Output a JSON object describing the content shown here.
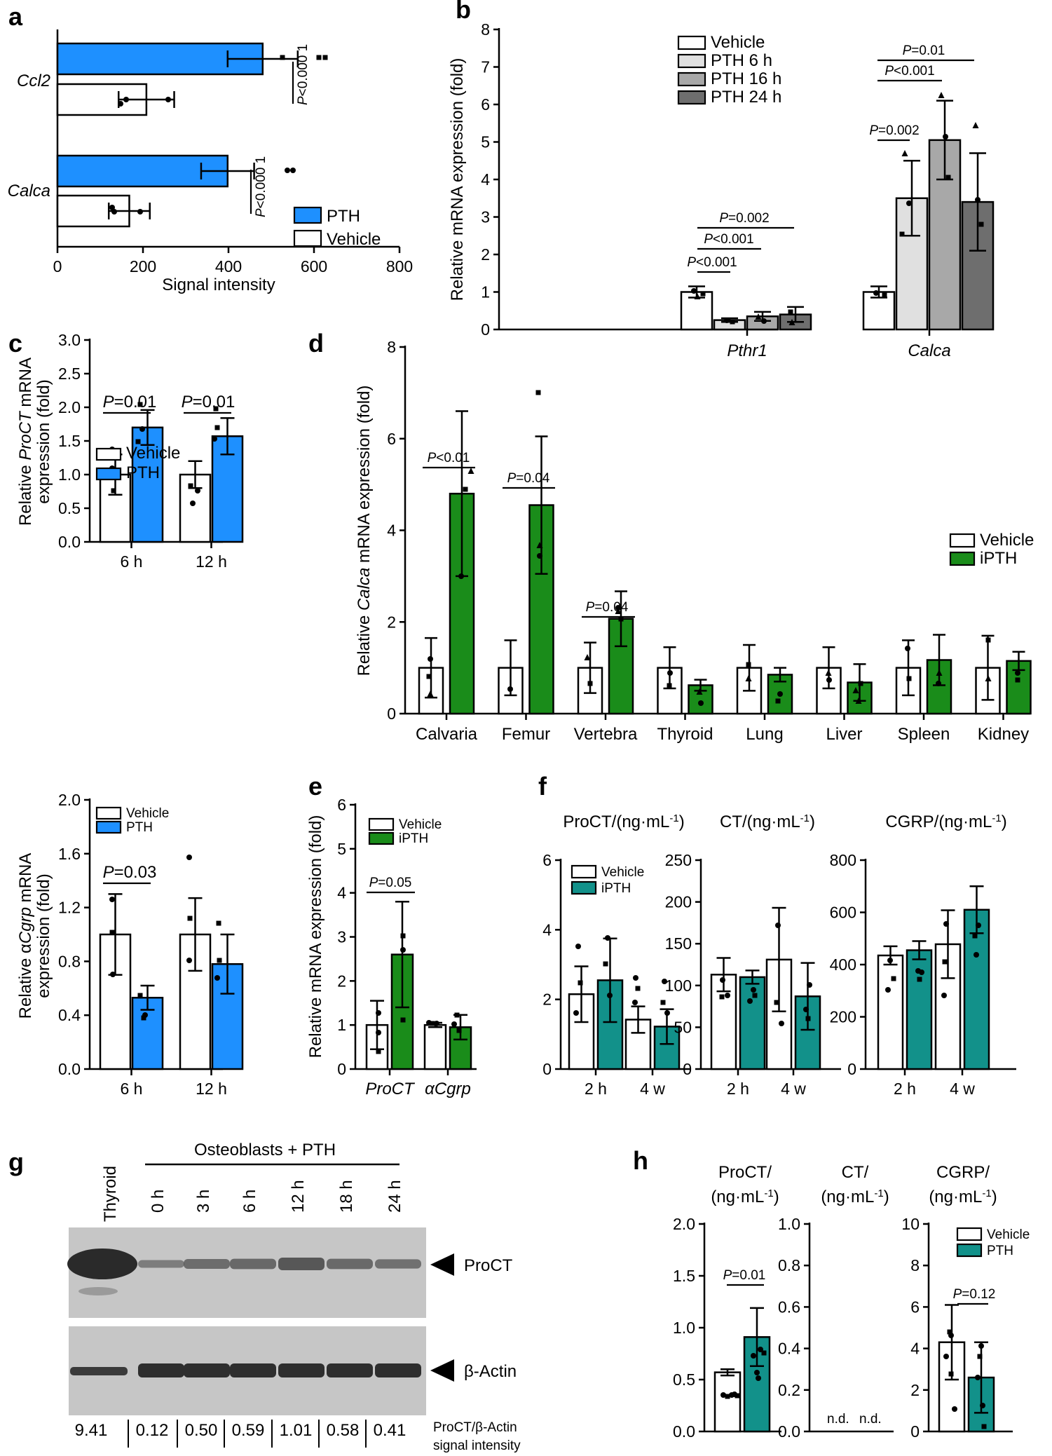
{
  "panel_letters": {
    "a": "a",
    "b": "b",
    "c": "c",
    "d": "d",
    "e": "e",
    "f": "f",
    "g": "g",
    "h": "h"
  },
  "colors": {
    "pth_blue": "#1e90ff",
    "ipth_green": "#1a8c1a",
    "teal": "#12918a",
    "vehicle": "#ffffff",
    "grey1": "#e0e0e0",
    "grey2": "#a8a8a8",
    "grey3": "#6e6e6e"
  },
  "chart_data": [
    {
      "panel": "a",
      "type": "bar",
      "orientation": "horizontal",
      "categories": [
        "Ccl2",
        "Calca"
      ],
      "series": [
        {
          "name": "PTH",
          "values": [
            480,
            398
          ],
          "errors": [
            82,
            62
          ],
          "color": "#1e90ff"
        },
        {
          "name": "Vehicle",
          "values": [
            208,
            168
          ],
          "errors": [
            65,
            48
          ],
          "color": "#ffffff"
        }
      ],
      "xlabel": "Signal intensity",
      "xlim": [
        0,
        800
      ],
      "xticks": [
        "0",
        "200",
        "400",
        "600",
        "800"
      ],
      "annotations": [
        "P<0.000 1",
        "P<0.000 1"
      ]
    },
    {
      "panel": "b",
      "type": "bar",
      "categories": [
        "Pthr1",
        "Calca"
      ],
      "series": [
        {
          "name": "Vehicle",
          "values": [
            1.0,
            1.0
          ],
          "errors": [
            0.15,
            0.15
          ]
        },
        {
          "name": "PTH 6 h",
          "values": [
            0.25,
            3.5
          ],
          "errors": [
            0.05,
            1.0
          ]
        },
        {
          "name": "PTH 16 h",
          "values": [
            0.35,
            5.05
          ],
          "errors": [
            0.12,
            1.05
          ]
        },
        {
          "name": "PTH 24 h",
          "values": [
            0.4,
            3.4
          ],
          "errors": [
            0.2,
            1.3
          ]
        }
      ],
      "ylabel": "Relative mRNA expression (fold)",
      "ylim": [
        0,
        8
      ],
      "yticks": [
        "0",
        "1",
        "2",
        "3",
        "4",
        "5",
        "6",
        "7",
        "8"
      ],
      "annotations": [
        "P<0.001",
        "P<0.001",
        "P=0.002",
        "P=0.002",
        "P<0.001",
        "P=0.01"
      ]
    },
    {
      "panel": "c-top",
      "type": "bar",
      "categories": [
        "6 h",
        "12 h"
      ],
      "series": [
        {
          "name": "Vehicle",
          "values": [
            1.0,
            1.0
          ],
          "errors": [
            0.3,
            0.2
          ]
        },
        {
          "name": "PTH",
          "values": [
            1.7,
            1.57
          ],
          "errors": [
            0.26,
            0.27
          ]
        }
      ],
      "ylabel": "Relative ProCT mRNA expression (fold)",
      "ylim": [
        0,
        3.0
      ],
      "yticks": [
        "0.0",
        "0.5",
        "1.0",
        "1.5",
        "2.0",
        "2.5",
        "3.0"
      ],
      "annotations": [
        "P=0.01",
        "P=0.01"
      ]
    },
    {
      "panel": "c-bottom",
      "type": "bar",
      "categories": [
        "6 h",
        "12 h"
      ],
      "series": [
        {
          "name": "Vehicle",
          "values": [
            1.0,
            1.0
          ],
          "errors": [
            0.3,
            0.27
          ]
        },
        {
          "name": "PTH",
          "values": [
            0.53,
            0.78
          ],
          "errors": [
            0.09,
            0.22
          ]
        }
      ],
      "ylabel": "Relative αCgrp mRNA expression (fold)",
      "ylim": [
        0,
        2.0
      ],
      "yticks": [
        "0.0",
        "0.4",
        "0.8",
        "1.2",
        "1.6",
        "2.0"
      ],
      "annotations": [
        "P=0.03"
      ]
    },
    {
      "panel": "d",
      "type": "bar",
      "categories": [
        "Calvaria",
        "Femur",
        "Vertebra",
        "Thyroid",
        "Lung",
        "Liver",
        "Spleen",
        "Kidney"
      ],
      "series": [
        {
          "name": "Vehicle",
          "values": [
            1.0,
            1.0,
            1.0,
            1.0,
            1.0,
            1.0,
            1.0,
            1.0
          ],
          "errors": [
            0.65,
            0.6,
            0.55,
            0.45,
            0.5,
            0.45,
            0.6,
            0.7
          ]
        },
        {
          "name": "iPTH",
          "values": [
            4.8,
            4.55,
            2.07,
            0.62,
            0.85,
            0.68,
            1.17,
            1.15
          ]
        }
      ],
      "ylabel": "Relative Calca mRNA expression (fold)",
      "ylim": [
        0,
        8
      ],
      "yticks": [
        "0",
        "2",
        "4",
        "6",
        "8"
      ],
      "annotations": [
        "P<0.01",
        "P=0.04",
        "P=0.04"
      ]
    },
    {
      "panel": "e",
      "type": "bar",
      "categories": [
        "ProCT",
        "αCgrp"
      ],
      "series": [
        {
          "name": "Vehicle",
          "values": [
            1.0,
            1.0
          ],
          "errors": [
            0.55,
            0.05
          ]
        },
        {
          "name": "iPTH",
          "values": [
            2.6,
            0.95
          ],
          "errors": [
            1.2,
            0.28
          ]
        }
      ],
      "ylabel": "Relative mRNA expression (fold)",
      "ylim": [
        0,
        6
      ],
      "yticks": [
        "0",
        "1",
        "2",
        "3",
        "4",
        "5",
        "6"
      ],
      "annotations": [
        "P=0.05"
      ]
    },
    {
      "panel": "f-1",
      "type": "bar",
      "title": "ProCT/(ng·mL⁻¹)",
      "categories": [
        "2 h",
        "4 w"
      ],
      "series": [
        {
          "name": "Vehicle",
          "values": [
            2.15,
            1.42
          ],
          "errors": [
            0.8,
            0.38
          ]
        },
        {
          "name": "iPTH",
          "values": [
            2.55,
            1.22
          ],
          "errors": [
            1.2,
            0.5
          ]
        }
      ],
      "ylim": [
        0,
        6
      ],
      "yticks": [
        "0",
        "2",
        "4",
        "6"
      ]
    },
    {
      "panel": "f-2",
      "type": "bar",
      "title": "CT/(ng·mL⁻¹)",
      "categories": [
        "2 h",
        "4 w"
      ],
      "series": [
        {
          "name": "Vehicle",
          "values": [
            113,
            131
          ],
          "errors": [
            20,
            62
          ]
        },
        {
          "name": "iPTH",
          "values": [
            110,
            87
          ],
          "errors": [
            8,
            40
          ]
        }
      ],
      "ylim": [
        0,
        250
      ],
      "yticks": [
        "0",
        "50",
        "100",
        "150",
        "200",
        "250"
      ]
    },
    {
      "panel": "f-3",
      "type": "bar",
      "title": "CGRP/(ng·mL⁻¹)",
      "categories": [
        "2 h",
        "4 w"
      ],
      "series": [
        {
          "name": "Vehicle",
          "values": [
            435,
            478
          ],
          "errors": [
            35,
            130
          ]
        },
        {
          "name": "iPTH",
          "values": [
            455,
            610
          ],
          "errors": [
            35,
            90
          ]
        }
      ],
      "ylim": [
        0,
        800
      ],
      "yticks": [
        "0",
        "200",
        "400",
        "600",
        "800"
      ]
    },
    {
      "panel": "h-1",
      "type": "bar",
      "title": "ProCT/(ng·mL⁻¹)",
      "categories": [
        ""
      ],
      "series": [
        {
          "name": "Vehicle",
          "values": [
            0.57
          ],
          "errors": [
            0.03
          ]
        },
        {
          "name": "PTH",
          "values": [
            0.91
          ],
          "errors": [
            0.28
          ]
        }
      ],
      "ylim": [
        0,
        2.0
      ],
      "yticks": [
        "0.0",
        "0.5",
        "1.0",
        "1.5",
        "2.0"
      ],
      "annotations": [
        "P=0.01"
      ]
    },
    {
      "panel": "h-2",
      "type": "bar",
      "title": "CT/(ng·mL⁻¹)",
      "categories": [
        ""
      ],
      "series": [],
      "ylim": [
        0,
        1.0
      ],
      "yticks": [
        "0.0",
        "0.2",
        "0.4",
        "0.6",
        "0.8",
        "1.0"
      ],
      "annotations": [
        "n.d.",
        "n.d."
      ]
    },
    {
      "panel": "h-3",
      "type": "bar",
      "title": "CGRP/(ng·mL⁻¹)",
      "categories": [
        ""
      ],
      "series": [
        {
          "name": "Vehicle",
          "values": [
            4.3
          ],
          "errors": [
            1.8
          ]
        },
        {
          "name": "PTH",
          "values": [
            2.6
          ],
          "errors": [
            1.7
          ]
        }
      ],
      "ylim": [
        0,
        10
      ],
      "yticks": [
        "0",
        "2",
        "4",
        "6",
        "8",
        "10"
      ],
      "annotations": [
        "P=0.12"
      ]
    }
  ],
  "legends": {
    "a": [
      "PTH",
      "Vehicle"
    ],
    "b": [
      "Vehicle",
      "PTH 6 h",
      "PTH 16 h",
      "PTH 24 h"
    ],
    "c_top": [
      "Vehicle",
      "PTH"
    ],
    "c_bottom": [
      "Vehicle",
      "PTH"
    ],
    "d": [
      "Vehicle",
      "iPTH"
    ],
    "e": [
      "Vehicle",
      "iPTH"
    ],
    "f": [
      "Vehicle",
      "iPTH"
    ],
    "h": [
      "Vehicle",
      "PTH"
    ]
  },
  "western_blot": {
    "group_label": "Osteoblasts + PTH",
    "lanes": [
      "Thyroid",
      "0 h",
      "3 h",
      "6 h",
      "12 h",
      "18 h",
      "24 h"
    ],
    "bands": [
      "ProCT",
      "β-Actin"
    ],
    "ratios": [
      "9.41",
      "0.12",
      "0.50",
      "0.59",
      "1.01",
      "0.58",
      "0.41"
    ],
    "ratio_label_1": "ProCT/β-Actin",
    "ratio_label_2": "signal intensity"
  }
}
